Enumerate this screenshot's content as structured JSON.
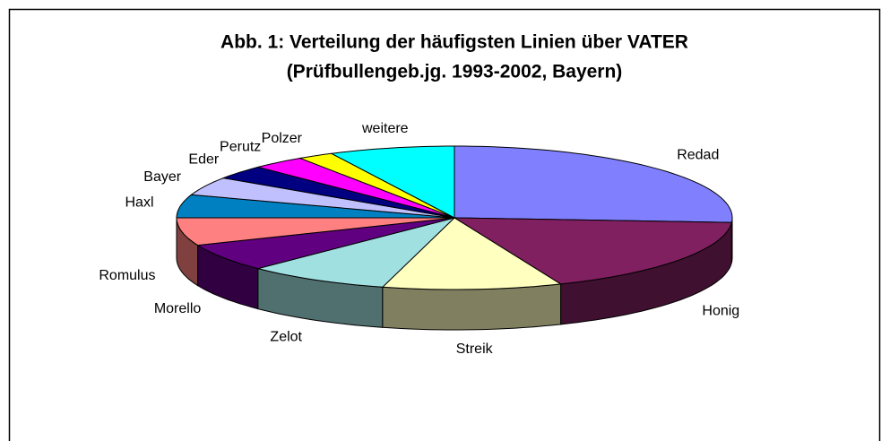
{
  "chart_data": {
    "type": "pie",
    "title": "Abb. 1: Verteilung der häufigsten Linien über VATER",
    "subtitle": "(Prüfbullengeb.jg. 1993-2002, Bayern)",
    "categories": [
      "Redad",
      "Honig",
      "Streik",
      "Zelot",
      "Morello",
      "Romulus",
      "Haxl",
      "Bayer",
      "Eder",
      "Perutz",
      "Polzer",
      "weitere"
    ],
    "values": [
      25,
      17,
      10,
      8,
      6,
      6,
      5,
      4,
      3,
      3,
      2,
      7
    ],
    "colors": [
      "#8080ff",
      "#802060",
      "#ffffc0",
      "#a0e0e0",
      "#600080",
      "#ff8080",
      "#0080c0",
      "#c0c0ff",
      "#000080",
      "#ff00ff",
      "#ffff00",
      "#00ffff"
    ]
  }
}
